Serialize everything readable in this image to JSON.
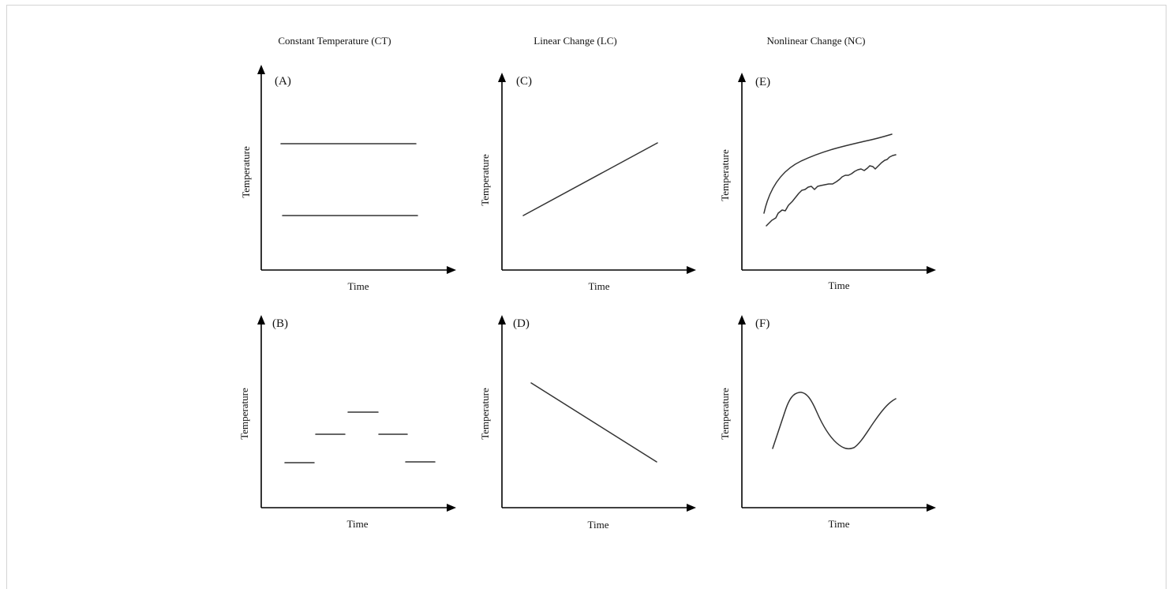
{
  "columns": [
    {
      "title": "Constant Temperature (CT)"
    },
    {
      "title": "Linear Change (LC)"
    },
    {
      "title": "Nonlinear Change (NC)"
    }
  ],
  "panels": [
    {
      "label": "(A)",
      "pattern": "two-constant-lines",
      "ylabel": "Temperature",
      "xlabel": "Time"
    },
    {
      "label": "(B)",
      "pattern": "stepped-constant-segments",
      "ylabel": "Temperature",
      "xlabel": "Time"
    },
    {
      "label": "(C)",
      "pattern": "linear-increase",
      "ylabel": "Temperature",
      "xlabel": "Time"
    },
    {
      "label": "(D)",
      "pattern": "linear-decrease",
      "ylabel": "Temperature",
      "xlabel": "Time"
    },
    {
      "label": "(E)",
      "pattern": "nonlinear-increase-smooth-and-fluctuating",
      "ylabel": "Temperature",
      "xlabel": "Time"
    },
    {
      "label": "(F)",
      "pattern": "nonlinear-wave",
      "ylabel": "Temperature",
      "xlabel": "Time"
    }
  ],
  "colors": {
    "axis": "#000000",
    "trace": "#333333",
    "border": "#d4d4d4"
  }
}
